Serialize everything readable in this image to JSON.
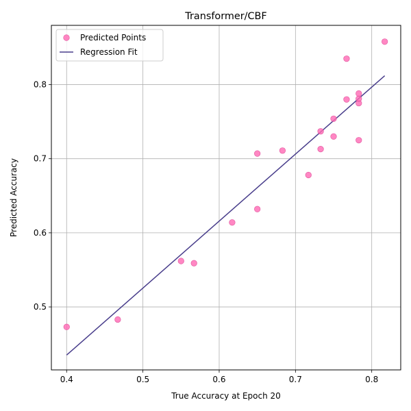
{
  "chart_data": {
    "type": "scatter",
    "title": "Transformer/CBF",
    "xlabel": "True Accuracy at Epoch 20",
    "ylabel": "Predicted Accuracy",
    "xlim": [
      0.38,
      0.838
    ],
    "ylim": [
      0.415,
      0.88
    ],
    "xticks": [
      0.4,
      0.5,
      0.6,
      0.7,
      0.8
    ],
    "yticks": [
      0.5,
      0.6,
      0.7,
      0.8
    ],
    "xtick_labels": [
      "0.4",
      "0.5",
      "0.6",
      "0.7",
      "0.8"
    ],
    "ytick_labels": [
      "0.5",
      "0.6",
      "0.7",
      "0.8"
    ],
    "grid": true,
    "legend": "upper-left",
    "series": [
      {
        "name": "Predicted Points",
        "kind": "scatter",
        "color": "#ff69b4",
        "points": [
          {
            "x": 0.4,
            "y": 0.473
          },
          {
            "x": 0.467,
            "y": 0.483
          },
          {
            "x": 0.55,
            "y": 0.562
          },
          {
            "x": 0.567,
            "y": 0.559
          },
          {
            "x": 0.617,
            "y": 0.614
          },
          {
            "x": 0.65,
            "y": 0.632
          },
          {
            "x": 0.65,
            "y": 0.707
          },
          {
            "x": 0.683,
            "y": 0.711
          },
          {
            "x": 0.717,
            "y": 0.678
          },
          {
            "x": 0.733,
            "y": 0.713
          },
          {
            "x": 0.733,
            "y": 0.737
          },
          {
            "x": 0.75,
            "y": 0.73
          },
          {
            "x": 0.75,
            "y": 0.754
          },
          {
            "x": 0.767,
            "y": 0.78
          },
          {
            "x": 0.767,
            "y": 0.835
          },
          {
            "x": 0.783,
            "y": 0.725
          },
          {
            "x": 0.783,
            "y": 0.775
          },
          {
            "x": 0.783,
            "y": 0.781
          },
          {
            "x": 0.783,
            "y": 0.788
          },
          {
            "x": 0.817,
            "y": 0.858
          }
        ]
      },
      {
        "name": "Regression Fit",
        "kind": "line",
        "color": "#483d8b",
        "points": [
          {
            "x": 0.4,
            "y": 0.435
          },
          {
            "x": 0.817,
            "y": 0.812
          }
        ]
      }
    ]
  }
}
